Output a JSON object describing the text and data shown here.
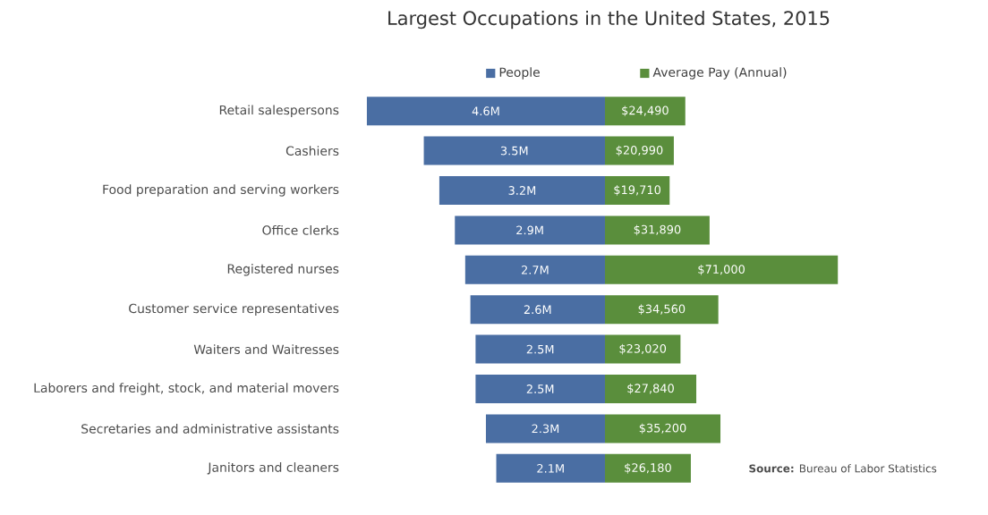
{
  "chart_data": [
    {
      "type": "bar",
      "orientation": "horizontal",
      "title": "Largest Occupations in the United States, 2015",
      "categories": [
        "Retail salespersons",
        "Cashiers",
        "Food preparation and serving workers",
        "Office clerks",
        "Registered nurses",
        "Customer service representatives",
        "Waiters and Waitresses",
        "Laborers and freight, stock, and material movers",
        "Secretaries and administrative assistants",
        "Janitors and cleaners"
      ],
      "series": [
        {
          "name": "People",
          "color": "#4a6ea3",
          "values": [
            4.6,
            3.5,
            3.2,
            2.9,
            2.7,
            2.6,
            2.5,
            2.5,
            2.3,
            2.1
          ],
          "value_labels": [
            "4.6M",
            "3.5M",
            "3.2M",
            "2.9M",
            "2.7M",
            "2.6M",
            "2.5M",
            "2.5M",
            "2.3M",
            "2.1M"
          ]
        }
      ],
      "legend": "top",
      "tick_labels": "y"
    },
    {
      "type": "bar",
      "orientation": "horizontal",
      "series": [
        {
          "name": "Average Pay (Annual)",
          "color": "#5a8e3c",
          "values": [
            24490,
            20990,
            19710,
            31890,
            71000,
            34560,
            23020,
            27840,
            35200,
            26180
          ],
          "value_labels": [
            "$24,490",
            "$20,990",
            "$19,710",
            "$31,890",
            "$71,000",
            "$34,560",
            "$23,020",
            "$27,840",
            "$35,200",
            "$26,180"
          ]
        }
      ],
      "legend": "top",
      "tick_labels": false,
      "annotations": [
        "**Source:** Bureau of Labor Statistics"
      ]
    }
  ]
}
